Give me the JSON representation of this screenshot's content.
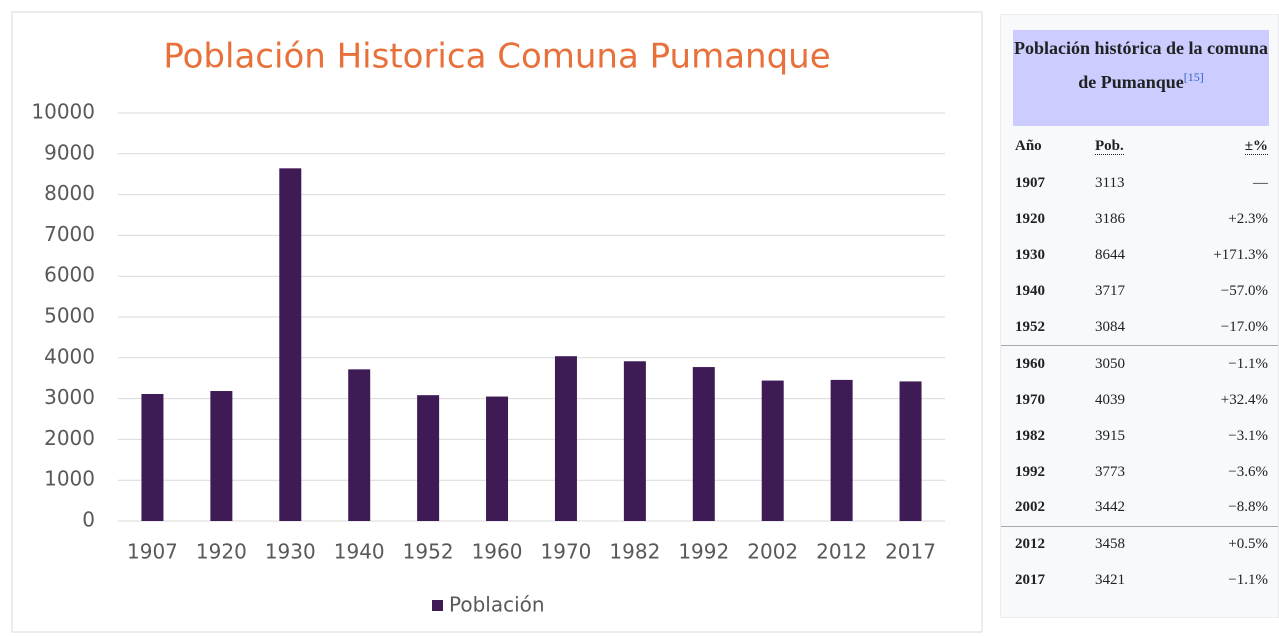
{
  "chart_data": {
    "type": "bar",
    "title": "Población Historica Comuna Pumanque",
    "categories": [
      "1907",
      "1920",
      "1930",
      "1940",
      "1952",
      "1960",
      "1970",
      "1982",
      "1992",
      "2002",
      "2012",
      "2017"
    ],
    "series": [
      {
        "name": "Población",
        "color": "#3e1b55",
        "values": [
          3113,
          3186,
          8644,
          3717,
          3084,
          3050,
          4039,
          3915,
          3773,
          3442,
          3458,
          3421
        ]
      }
    ],
    "ylim": [
      0,
      10000
    ],
    "yticks": [
      0,
      1000,
      2000,
      3000,
      4000,
      5000,
      6000,
      7000,
      8000,
      9000,
      10000
    ],
    "grid": true,
    "legend": "bottom"
  },
  "table": {
    "title": "Población histórica de la comuna de Pumanque",
    "reference": "[15]",
    "columns": [
      "Año",
      "Pob.",
      "±%"
    ],
    "rows": [
      [
        "1907",
        "3113",
        "—"
      ],
      [
        "1920",
        "3186",
        "+2.3%"
      ],
      [
        "1930",
        "8644",
        "+171.3%"
      ],
      [
        "1940",
        "3717",
        "−57.0%"
      ],
      [
        "1952",
        "3084",
        "−17.0%"
      ],
      [
        "1960",
        "3050",
        "−1.1%"
      ],
      [
        "1970",
        "4039",
        "+32.4%"
      ],
      [
        "1982",
        "3915",
        "−3.1%"
      ],
      [
        "1992",
        "3773",
        "−3.6%"
      ],
      [
        "2002",
        "3442",
        "−8.8%"
      ],
      [
        "2012",
        "3458",
        "+0.5%"
      ],
      [
        "2017",
        "3421",
        "−1.1%"
      ]
    ]
  }
}
